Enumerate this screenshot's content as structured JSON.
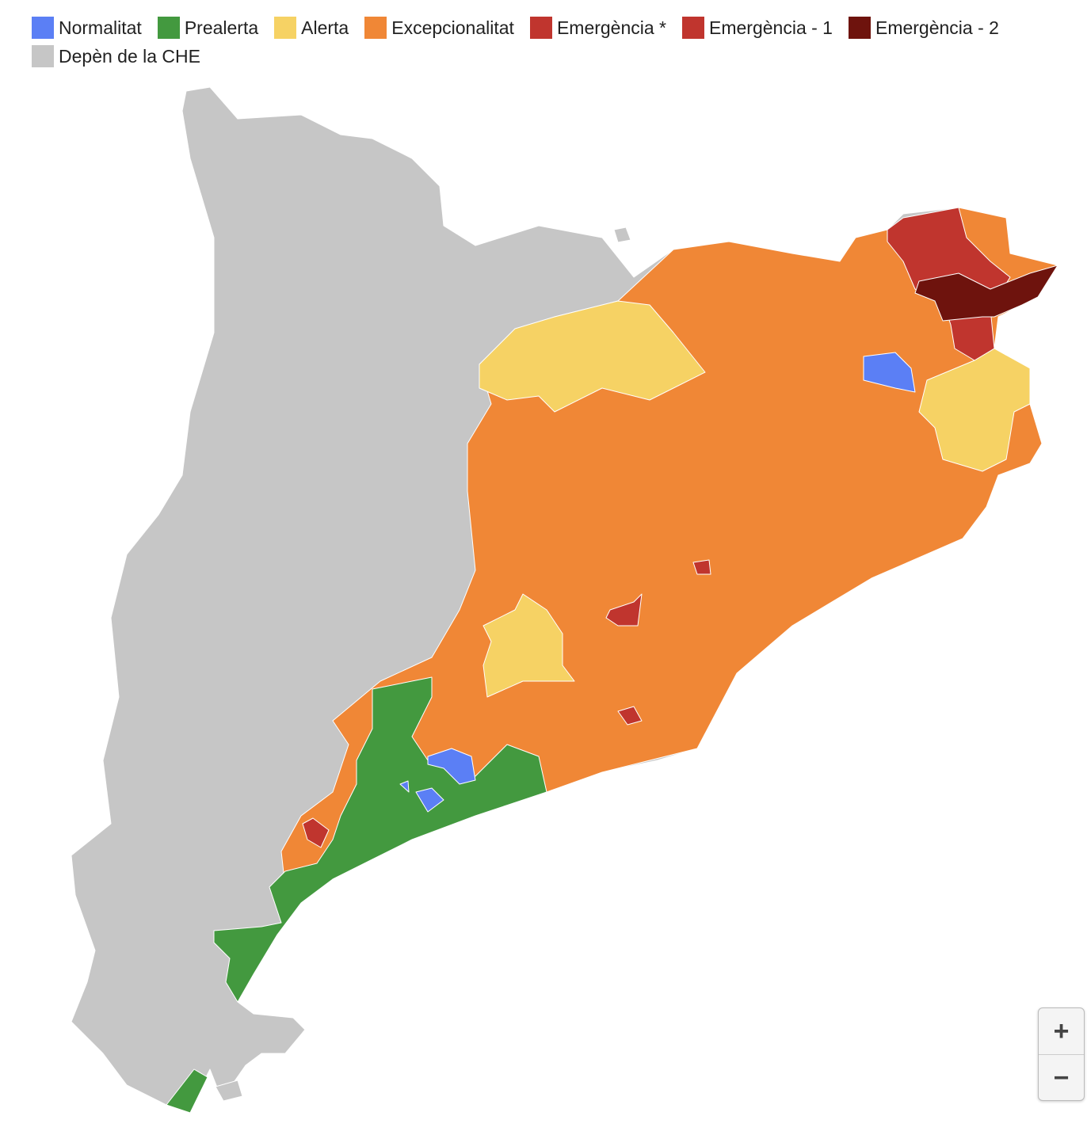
{
  "legend": {
    "items": [
      {
        "label": "Normalitat",
        "color": "#5b7ff5"
      },
      {
        "label": "Prealerta",
        "color": "#43993f"
      },
      {
        "label": "Alerta",
        "color": "#f6d264"
      },
      {
        "label": "Excepcionalitat",
        "color": "#f08736"
      },
      {
        "label": "Emergència *",
        "color": "#c0352e"
      },
      {
        "label": "Emergència - 1",
        "color": "#c0352e"
      },
      {
        "label": "Emergència - 2",
        "color": "#6e130d"
      },
      {
        "label": "Depèn de la CHE",
        "color": "#c6c6c6"
      }
    ]
  },
  "zoom": {
    "in": "+",
    "out": "−"
  }
}
